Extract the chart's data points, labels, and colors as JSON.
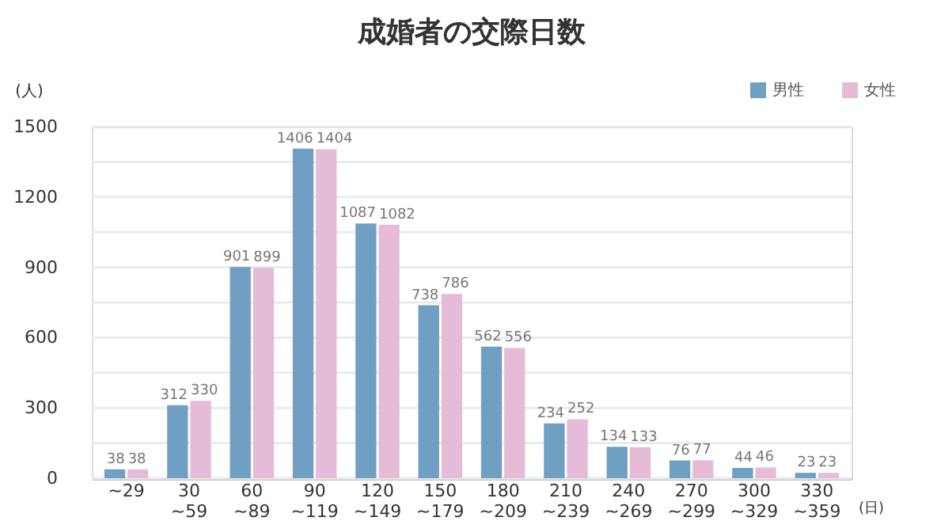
{
  "chart_data": {
    "type": "bar",
    "title": "成婚者の交際日数",
    "categories": [
      "~29",
      "30\n~59",
      "60\n~89",
      "90\n~119",
      "120\n~149",
      "150\n~179",
      "180\n~209",
      "210\n~239",
      "240\n~269",
      "270\n~299",
      "300\n~329",
      "330\n~359"
    ],
    "series": [
      {
        "name": "男性",
        "color": "#6f9fc2",
        "values": [
          38,
          312,
          901,
          1406,
          1087,
          738,
          562,
          234,
          134,
          76,
          44,
          23
        ]
      },
      {
        "name": "女性",
        "color": "#e6bbd8",
        "values": [
          38,
          330,
          899,
          1404,
          1082,
          786,
          556,
          252,
          133,
          77,
          46,
          23
        ]
      }
    ],
    "ylabel": "(人)",
    "xlabel": "(日)",
    "ylim": [
      0,
      1500
    ],
    "yticks": [
      0,
      {
        "value": 150,
        "label": null
      },
      300,
      {
        "value": 450,
        "label": null
      },
      600,
      {
        "value": 750,
        "label": null
      },
      900,
      {
        "value": 1050,
        "label": null
      },
      1200,
      {
        "value": 1350,
        "label": null
      },
      1500
    ],
    "grid": "y",
    "legend": "top right",
    "data_labels": true
  }
}
